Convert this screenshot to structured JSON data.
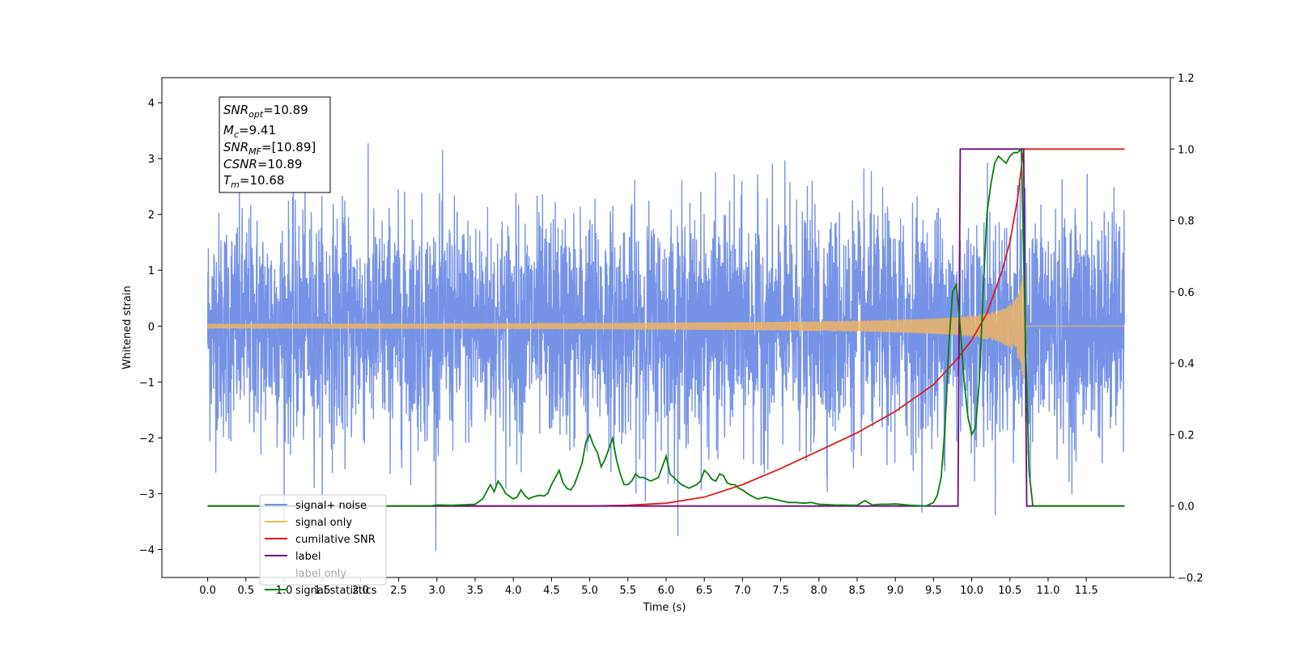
{
  "chart_data": {
    "type": "line",
    "title": "",
    "xlabel": "Time (s)",
    "ylabel": "Whitened strain",
    "y2label": "",
    "xlim": [
      -0.6,
      12.6
    ],
    "ylim": [
      -4.5,
      4.45
    ],
    "y2lim": [
      -0.2,
      1.2
    ],
    "xticks": [
      0.0,
      0.5,
      1.0,
      1.5,
      2.0,
      2.5,
      3.0,
      3.5,
      4.0,
      4.5,
      5.0,
      5.5,
      6.0,
      6.5,
      7.0,
      7.5,
      8.0,
      8.5,
      9.0,
      9.5,
      10.0,
      10.5,
      11.0,
      11.5
    ],
    "yticks": [
      -4,
      -3,
      -2,
      -1,
      0,
      1,
      2,
      3,
      4
    ],
    "y2ticks": [
      -0.2,
      0.0,
      0.2,
      0.4,
      0.6,
      0.8,
      1.0,
      1.2
    ],
    "grid": false,
    "legend_position": "lower-left",
    "annotation": {
      "snr_opt": {
        "sym": "SNR",
        "sub": "opt",
        "value": "=10.89"
      },
      "mc": {
        "sym": "M",
        "sub": "c",
        "value": "=9.41"
      },
      "snr_mf": {
        "sym": "SNR",
        "sub": "MF",
        "value": "=[10.89]"
      },
      "csnr": {
        "sym": "CSNR",
        "sub": "",
        "value": "=10.89"
      },
      "tm": {
        "sym": "T",
        "sub": "m",
        "value": "=10.68"
      }
    },
    "series": [
      {
        "name": "signal+ noise",
        "axis": "left",
        "color": "#6f8de6",
        "kind": "noise",
        "t_start": 0.0,
        "t_end": 12.0,
        "noise_sigma": 1.0,
        "merger_time": 10.68
      },
      {
        "name": "signal only",
        "axis": "left",
        "color": "#f5b75b",
        "kind": "chirp",
        "t_start": 0.0,
        "t_end": 12.0,
        "merger_time": 10.68,
        "peak_amplitude": 1.1
      },
      {
        "name": "cumilative SNR",
        "axis": "right",
        "color": "#e31a1c",
        "kind": "line",
        "x": [
          0.0,
          5.0,
          5.5,
          6.0,
          6.5,
          7.0,
          7.5,
          8.0,
          8.5,
          9.0,
          9.5,
          9.8,
          10.0,
          10.2,
          10.4,
          10.5,
          10.6,
          10.68,
          10.69,
          12.0
        ],
        "y": [
          0.0,
          0.0,
          0.002,
          0.008,
          0.025,
          0.06,
          0.105,
          0.155,
          0.205,
          0.265,
          0.34,
          0.41,
          0.465,
          0.54,
          0.66,
          0.74,
          0.86,
          1.0,
          1.0,
          1.0
        ]
      },
      {
        "name": "label",
        "axis": "right",
        "color": "#6a0b82",
        "kind": "line",
        "x": [
          0.0,
          9.82,
          9.85,
          10.68,
          10.72,
          12.0
        ],
        "y": [
          0.0,
          0.0,
          1.0,
          1.0,
          0.0,
          0.0
        ]
      },
      {
        "name": "label only",
        "axis": "right",
        "color": "#6a0b82",
        "kind": "hidden",
        "x": [],
        "y": []
      },
      {
        "name": "signal statistics",
        "axis": "right",
        "color": "#0a7f0a",
        "kind": "line",
        "x": [
          0.0,
          2.9,
          3.0,
          3.2,
          3.5,
          3.6,
          3.7,
          3.75,
          3.8,
          3.85,
          3.9,
          4.0,
          4.05,
          4.1,
          4.15,
          4.2,
          4.25,
          4.3,
          4.35,
          4.4,
          4.45,
          4.5,
          4.55,
          4.6,
          4.65,
          4.7,
          4.75,
          4.8,
          4.9,
          4.95,
          5.0,
          5.05,
          5.1,
          5.15,
          5.2,
          5.25,
          5.3,
          5.35,
          5.4,
          5.45,
          5.5,
          5.55,
          5.6,
          5.65,
          5.7,
          5.8,
          5.9,
          6.0,
          6.05,
          6.1,
          6.2,
          6.3,
          6.4,
          6.45,
          6.5,
          6.55,
          6.6,
          6.65,
          6.7,
          6.75,
          6.8,
          6.85,
          6.9,
          6.95,
          7.0,
          7.1,
          7.2,
          7.3,
          7.4,
          7.5,
          7.6,
          7.7,
          7.8,
          7.9,
          8.0,
          8.2,
          8.5,
          8.6,
          8.7,
          8.8,
          8.9,
          9.0,
          9.2,
          9.4,
          9.5,
          9.55,
          9.6,
          9.65,
          9.7,
          9.75,
          9.8,
          9.85,
          9.9,
          9.95,
          10.0,
          10.05,
          10.1,
          10.15,
          10.2,
          10.25,
          10.3,
          10.35,
          10.4,
          10.45,
          10.5,
          10.55,
          10.6,
          10.65,
          10.7,
          10.75,
          10.8,
          11.0,
          12.0
        ],
        "y": [
          0.0,
          0.0,
          0.003,
          0.002,
          0.005,
          0.02,
          0.06,
          0.04,
          0.07,
          0.055,
          0.035,
          0.02,
          0.025,
          0.045,
          0.03,
          0.02,
          0.025,
          0.028,
          0.03,
          0.028,
          0.035,
          0.06,
          0.08,
          0.1,
          0.065,
          0.05,
          0.045,
          0.06,
          0.12,
          0.18,
          0.2,
          0.17,
          0.15,
          0.11,
          0.13,
          0.16,
          0.19,
          0.13,
          0.09,
          0.06,
          0.06,
          0.07,
          0.09,
          0.08,
          0.08,
          0.07,
          0.08,
          0.14,
          0.09,
          0.08,
          0.06,
          0.05,
          0.06,
          0.07,
          0.1,
          0.09,
          0.075,
          0.07,
          0.09,
          0.085,
          0.065,
          0.06,
          0.06,
          0.05,
          0.045,
          0.03,
          0.02,
          0.025,
          0.02,
          0.015,
          0.01,
          0.01,
          0.008,
          0.01,
          0.005,
          0.003,
          0.002,
          0.015,
          0.003,
          0.005,
          0.005,
          0.006,
          0.002,
          0.0,
          0.01,
          0.03,
          0.08,
          0.22,
          0.45,
          0.6,
          0.62,
          0.5,
          0.35,
          0.25,
          0.2,
          0.22,
          0.35,
          0.6,
          0.82,
          0.9,
          0.96,
          0.98,
          0.97,
          0.96,
          0.98,
          0.99,
          0.99,
          1.0,
          0.5,
          0.1,
          0.0,
          0.0,
          0.0
        ]
      }
    ]
  }
}
